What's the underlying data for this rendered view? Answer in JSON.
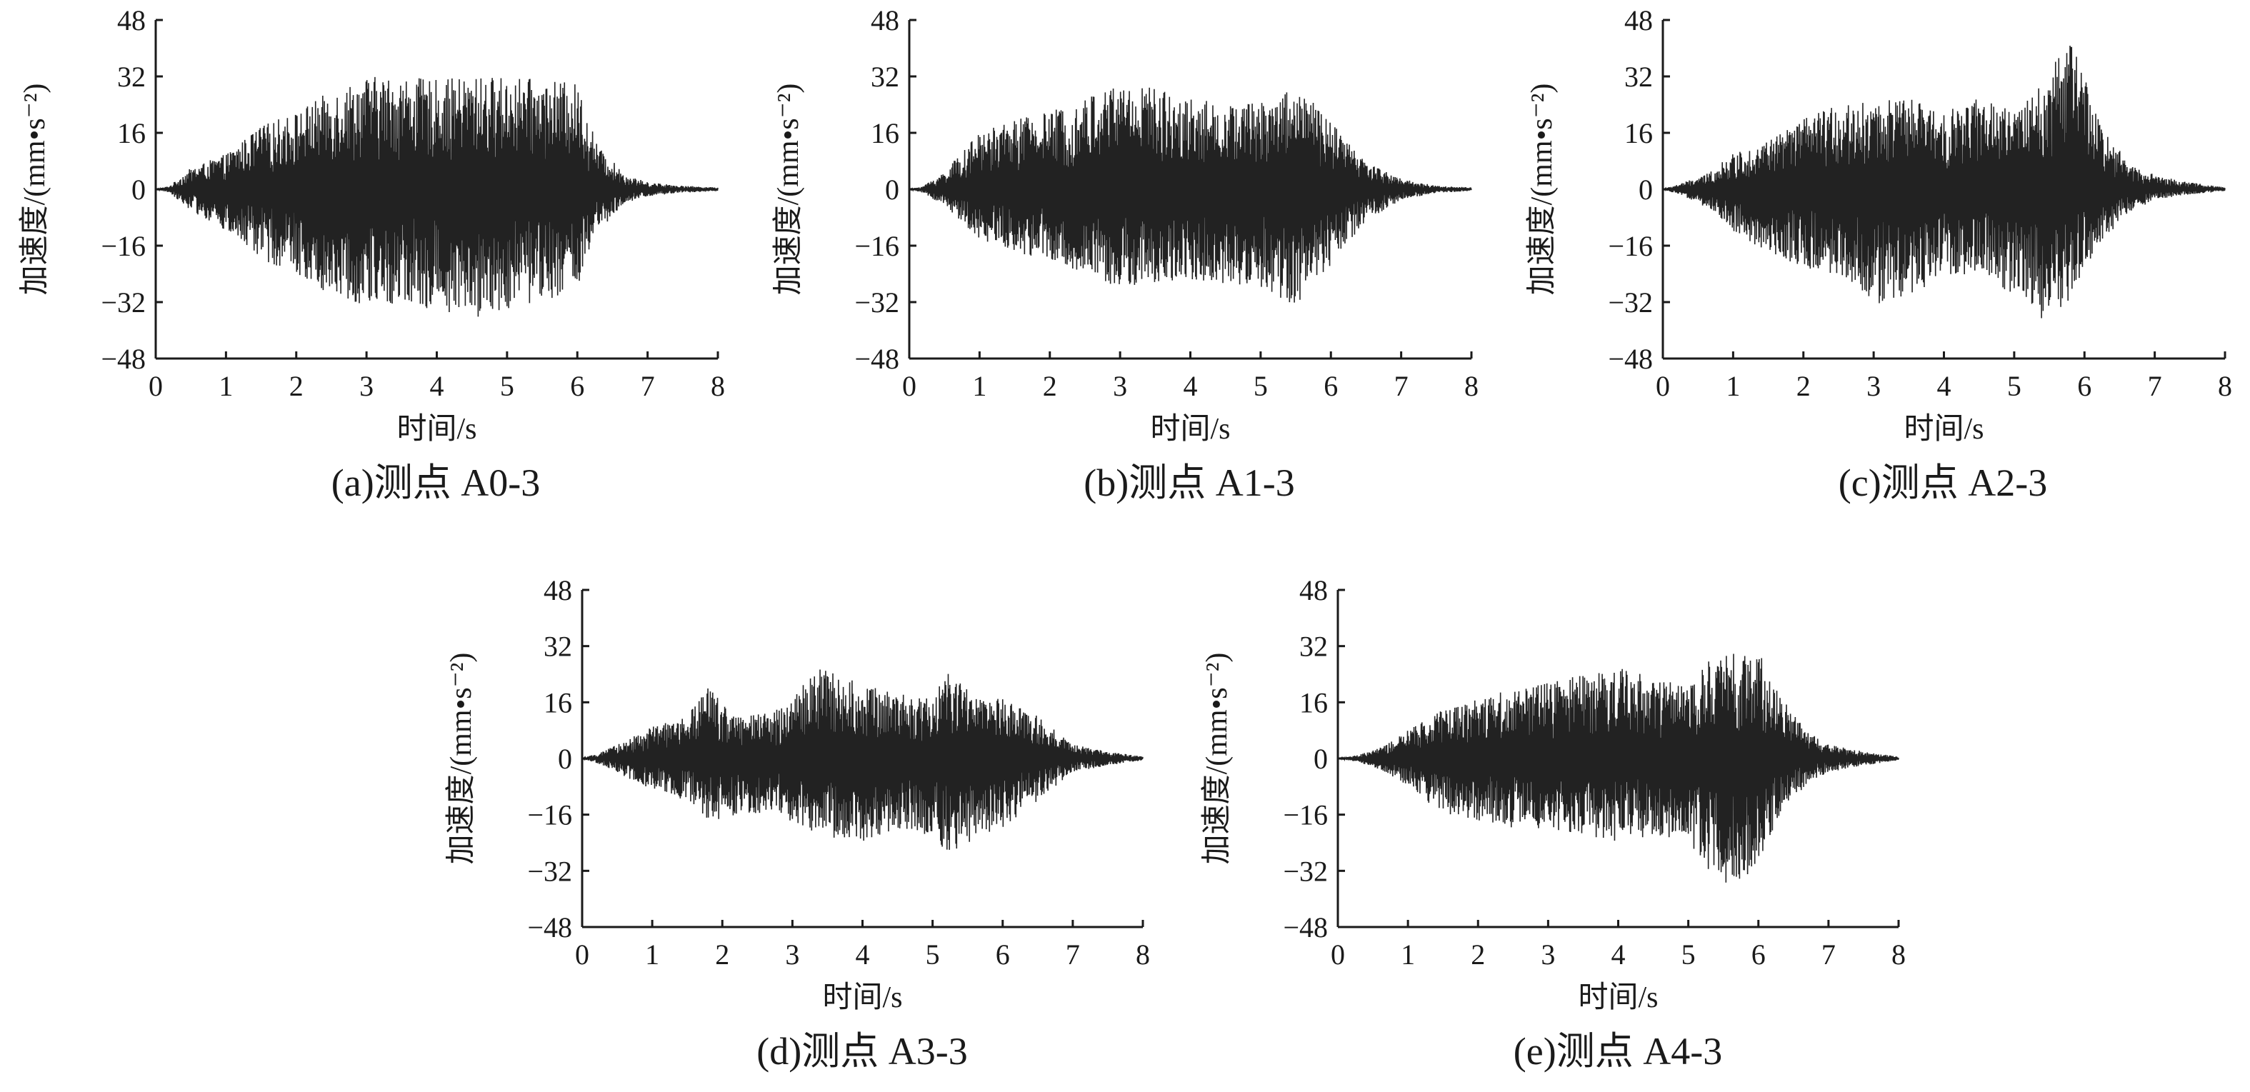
{
  "chart_data": [
    {
      "type": "line",
      "caption": "(a)测点 A0-3",
      "xlabel": "时间/s",
      "ylabel": "加速度/(mm•s⁻²)",
      "xlim": [
        0,
        8
      ],
      "ylim": [
        -48,
        48
      ],
      "xticks": [
        0,
        1,
        2,
        3,
        4,
        5,
        6,
        7,
        8
      ],
      "yticks": [
        48,
        32,
        16,
        0,
        -16,
        -32,
        -48
      ],
      "grid": false,
      "series": [
        {
          "envelope_t": [
            0,
            0.2,
            0.5,
            1.0,
            1.5,
            2.0,
            2.5,
            3.0,
            3.5,
            4.0,
            4.5,
            5.0,
            5.5,
            6.0,
            6.3,
            6.7,
            7.0,
            7.5,
            8.0
          ],
          "envelope_max": [
            0,
            1,
            6,
            10,
            18,
            22,
            28,
            32,
            32,
            31,
            32,
            32,
            31,
            30,
            12,
            4,
            2,
            1,
            0.5
          ],
          "envelope_min": [
            0,
            -1,
            -6,
            -12,
            -20,
            -24,
            -30,
            -33,
            -33,
            -34,
            -37,
            -34,
            -32,
            -28,
            -12,
            -4,
            -2,
            -1,
            -0.5
          ]
        }
      ]
    },
    {
      "type": "line",
      "caption": "(b)测点 A1-3",
      "xlabel": "时间/s",
      "ylabel": "加速度/(mm•s⁻²)",
      "xlim": [
        0,
        8
      ],
      "ylim": [
        -48,
        48
      ],
      "xticks": [
        0,
        1,
        2,
        3,
        4,
        5,
        6,
        7,
        8
      ],
      "yticks": [
        48,
        32,
        16,
        0,
        -16,
        -32,
        -48
      ],
      "grid": false,
      "series": [
        {
          "envelope_t": [
            0,
            0.2,
            0.5,
            1.0,
            1.5,
            2.0,
            2.5,
            3.0,
            3.5,
            4.0,
            4.5,
            5.0,
            5.5,
            6.0,
            6.5,
            7.0,
            7.5,
            8.0
          ],
          "envelope_max": [
            0,
            1,
            5,
            16,
            20,
            22,
            26,
            31,
            29,
            26,
            24,
            25,
            30,
            19,
            8,
            3,
            1,
            0.5
          ],
          "envelope_min": [
            0,
            -1,
            -5,
            -14,
            -18,
            -20,
            -24,
            -28,
            -27,
            -26,
            -27,
            -29,
            -33,
            -22,
            -9,
            -3,
            -1,
            -0.5
          ]
        }
      ]
    },
    {
      "type": "line",
      "caption": "(c)测点 A2-3",
      "xlabel": "时间/s",
      "ylabel": "加速度/(mm•s⁻²)",
      "xlim": [
        0,
        8
      ],
      "ylim": [
        -48,
        48
      ],
      "xticks": [
        0,
        1,
        2,
        3,
        4,
        5,
        6,
        7,
        8
      ],
      "yticks": [
        48,
        32,
        16,
        0,
        -16,
        -32,
        -48
      ],
      "grid": false,
      "series": [
        {
          "envelope_t": [
            0,
            0.3,
            0.6,
            1.0,
            1.5,
            2.0,
            2.5,
            3.0,
            3.5,
            4.0,
            4.5,
            5.0,
            5.4,
            5.8,
            6.2,
            6.6,
            7.0,
            7.5,
            8.0
          ],
          "envelope_max": [
            0,
            2,
            4,
            10,
            14,
            20,
            24,
            25,
            26,
            22,
            26,
            22,
            30,
            44,
            20,
            8,
            4,
            2,
            0.5
          ],
          "envelope_min": [
            0,
            -2,
            -5,
            -12,
            -18,
            -22,
            -25,
            -33,
            -30,
            -25,
            -24,
            -30,
            -38,
            -32,
            -16,
            -7,
            -3,
            -1.5,
            -0.5
          ]
        }
      ]
    },
    {
      "type": "line",
      "caption": "(d)测点 A3-3",
      "xlabel": "时间/s",
      "ylabel": "加速度/(mm•s⁻²)",
      "xlim": [
        0,
        8
      ],
      "ylim": [
        -48,
        48
      ],
      "xticks": [
        0,
        1,
        2,
        3,
        4,
        5,
        6,
        7,
        8
      ],
      "yticks": [
        48,
        32,
        16,
        0,
        -16,
        -32,
        -48
      ],
      "grid": false,
      "series": [
        {
          "envelope_t": [
            0,
            0.3,
            0.7,
            1.0,
            1.5,
            1.8,
            2.2,
            2.7,
            3.0,
            3.4,
            4.0,
            4.5,
            5.0,
            5.2,
            5.6,
            6.0,
            6.5,
            7.0,
            7.5,
            8.0
          ],
          "envelope_max": [
            0,
            2,
            6,
            9,
            12,
            21,
            12,
            13,
            18,
            26,
            21,
            19,
            17,
            25,
            18,
            17,
            12,
            4,
            2,
            0.5
          ],
          "envelope_min": [
            0,
            -2,
            -6,
            -9,
            -12,
            -18,
            -16,
            -16,
            -18,
            -22,
            -24,
            -20,
            -22,
            -28,
            -24,
            -20,
            -12,
            -4,
            -2,
            -0.5
          ]
        }
      ]
    },
    {
      "type": "line",
      "caption": "(e)测点 A4-3",
      "xlabel": "时间/s",
      "ylabel": "加速度/(mm•s⁻²)",
      "xlim": [
        0,
        8
      ],
      "ylim": [
        -48,
        48
      ],
      "xticks": [
        0,
        1,
        2,
        3,
        4,
        5,
        6,
        7,
        8
      ],
      "yticks": [
        48,
        32,
        16,
        0,
        -16,
        -32,
        -48
      ],
      "grid": false,
      "series": [
        {
          "envelope_t": [
            0,
            0.3,
            0.7,
            1.0,
            1.5,
            2.0,
            2.5,
            3.0,
            3.5,
            4.0,
            4.5,
            5.0,
            5.3,
            5.6,
            6.0,
            6.3,
            6.7,
            7.0,
            7.5,
            8.0
          ],
          "envelope_max": [
            0,
            1,
            4,
            8,
            14,
            18,
            20,
            22,
            24,
            26,
            24,
            20,
            28,
            30,
            31,
            18,
            8,
            4,
            2,
            0.5
          ],
          "envelope_min": [
            0,
            -1,
            -4,
            -8,
            -16,
            -18,
            -20,
            -20,
            -22,
            -24,
            -22,
            -24,
            -32,
            -38,
            -30,
            -16,
            -7,
            -4,
            -2,
            -0.5
          ]
        }
      ]
    }
  ]
}
